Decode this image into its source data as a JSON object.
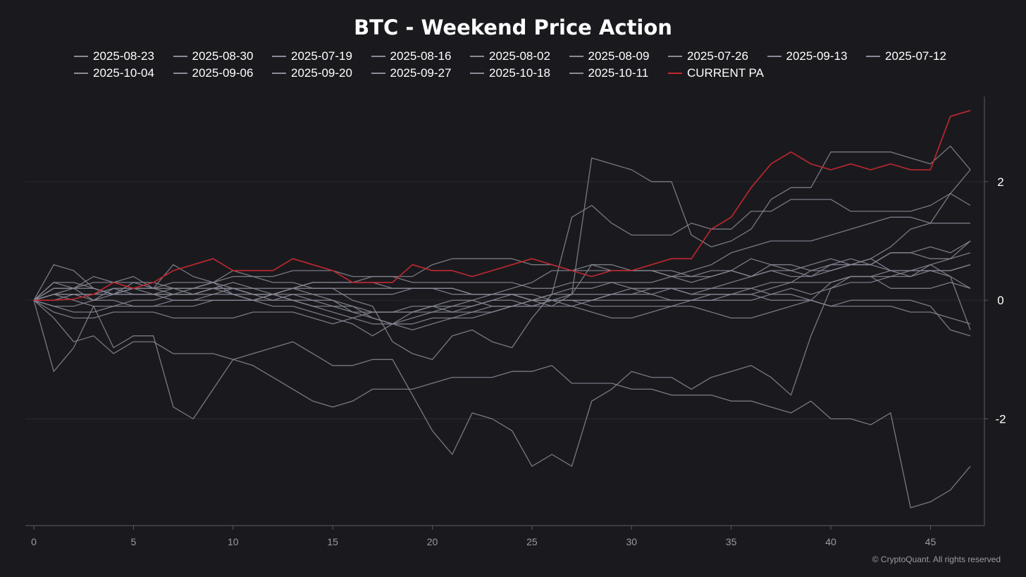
{
  "title": "BTC - Weekend Price Action",
  "copyright": "© CryptoQuant. All rights reserved",
  "colors": {
    "background": "#1a1a1e",
    "grid": "#2a2a30",
    "axis": "#5a5a66",
    "series_default": "#8a8a98",
    "current": "#c0282e"
  },
  "chart_data": {
    "type": "line",
    "title": "BTC - Weekend Price Action",
    "xlabel": "",
    "ylabel": "",
    "xlim": [
      0,
      47
    ],
    "ylim": [
      -3.8,
      3.4
    ],
    "x_ticks": [
      0,
      5,
      10,
      15,
      20,
      25,
      30,
      35,
      40,
      45
    ],
    "y_ticks": [
      2,
      0,
      -2
    ],
    "grid": "horizontal",
    "legend_position": "top",
    "series": [
      {
        "name": "2025-08-23",
        "color": "#8a8a98",
        "values": [
          0,
          0.6,
          0.5,
          0.2,
          0.1,
          0.3,
          0.2,
          0.1,
          0.1,
          0.2,
          0.1,
          0,
          -0.1,
          -0.1,
          -0.2,
          -0.3,
          -0.4,
          -0.6,
          -0.4,
          -0.5,
          -0.4,
          -0.3,
          -0.3,
          -0.2,
          -0.1,
          0,
          0,
          -0.1,
          -0.2,
          -0.3,
          -0.3,
          -0.2,
          -0.1,
          -0.1,
          -0.2,
          -0.3,
          -0.3,
          -0.2,
          -0.1,
          0,
          0.3,
          0.4,
          0.4,
          0.2,
          0.2,
          0.2,
          0.3,
          0.2
        ]
      },
      {
        "name": "2025-08-30",
        "color": "#8a8a98",
        "values": [
          0,
          -1.2,
          -0.8,
          -0.1,
          -0.8,
          -0.6,
          -0.6,
          -1.8,
          -2.0,
          -1.5,
          -1.0,
          -1.1,
          -1.3,
          -1.5,
          -1.7,
          -1.8,
          -1.7,
          -1.5,
          -1.5,
          -1.5,
          -1.4,
          -1.3,
          -1.3,
          -1.3,
          -1.2,
          -1.2,
          -1.1,
          -1.4,
          -1.4,
          -1.4,
          -1.5,
          -1.5,
          -1.6,
          -1.6,
          -1.6,
          -1.7,
          -1.7,
          -1.8,
          -1.9,
          -1.7,
          -2.0,
          -2.0,
          -2.1,
          -1.9,
          -3.5,
          -3.4,
          -3.2,
          -2.8
        ]
      },
      {
        "name": "2025-07-19",
        "color": "#8a8a98",
        "values": [
          0,
          0.2,
          0.2,
          0.4,
          0.3,
          0.4,
          0.2,
          0.3,
          0.3,
          0.3,
          0.5,
          0.4,
          0.3,
          0.3,
          0.2,
          0.2,
          0,
          -0.1,
          -0.7,
          -0.9,
          -1.0,
          -0.6,
          -0.5,
          -0.7,
          -0.8,
          -0.3,
          0.1,
          1.4,
          1.6,
          1.3,
          1.1,
          1.1,
          1.1,
          1.3,
          1.2,
          1.2,
          1.5,
          1.5,
          1.7,
          1.7,
          1.7,
          1.5,
          1.5,
          1.5,
          1.5,
          1.6,
          1.8,
          1.6
        ]
      },
      {
        "name": "2025-08-16",
        "color": "#8a8a98",
        "values": [
          0,
          0.3,
          0.3,
          0.2,
          0.1,
          0.2,
          0.2,
          0.6,
          0.4,
          0.3,
          0.2,
          0.1,
          0.1,
          0.2,
          0.1,
          0,
          -0.1,
          -0.3,
          -0.4,
          -0.2,
          -0.1,
          -0.2,
          -0.1,
          0,
          0.1,
          0,
          -0.1,
          0.1,
          0.6,
          0.5,
          0.5,
          0.5,
          0.5,
          0.4,
          0.4,
          0.5,
          0.7,
          0.6,
          0.6,
          0.5,
          0.6,
          0.7,
          0.6,
          0.5,
          0.5,
          0.6,
          0.7,
          0.8
        ]
      },
      {
        "name": "2025-08-02",
        "color": "#8a8a98",
        "values": [
          0,
          -0.2,
          -0.3,
          -0.3,
          -0.2,
          -0.2,
          -0.2,
          -0.3,
          -0.3,
          -0.3,
          -0.3,
          -0.2,
          -0.2,
          -0.2,
          -0.3,
          -0.4,
          -0.3,
          -0.2,
          -0.2,
          -0.1,
          -0.1,
          0,
          0,
          -0.1,
          -0.1,
          -0.1,
          0,
          0,
          0,
          0.1,
          0.1,
          0.2,
          0.2,
          0.2,
          0.2,
          0.2,
          0.2,
          0.3,
          0.3,
          0.3,
          0.3,
          0.4,
          0.4,
          0.4,
          0.5,
          0.5,
          0.5,
          0.6
        ]
      },
      {
        "name": "2025-08-09",
        "color": "#8a8a98",
        "values": [
          0,
          0.1,
          0.1,
          0,
          0.1,
          0.2,
          0.1,
          0.1,
          0.2,
          0.3,
          0.1,
          0,
          0.1,
          0.2,
          0.3,
          0.3,
          0.3,
          0.3,
          0.2,
          0.2,
          0.2,
          0.1,
          0.1,
          0.1,
          0.1,
          0,
          0.1,
          0.1,
          0.1,
          0.1,
          0.1,
          0.1,
          0,
          0,
          0,
          0,
          0,
          0.1,
          0.1,
          0,
          -0.1,
          -0.1,
          -0.1,
          -0.1,
          -0.2,
          -0.2,
          -0.3,
          -0.4
        ]
      },
      {
        "name": "2025-07-26",
        "color": "#8a8a98",
        "values": [
          0,
          -0.3,
          -0.7,
          -0.6,
          -0.9,
          -0.7,
          -0.7,
          -0.9,
          -0.9,
          -0.9,
          -1.0,
          -0.9,
          -0.8,
          -0.7,
          -0.9,
          -1.1,
          -1.1,
          -1.0,
          -1.0,
          -1.6,
          -2.2,
          -2.6,
          -1.9,
          -2.0,
          -2.2,
          -2.8,
          -2.6,
          -2.8,
          -1.7,
          -1.5,
          -1.2,
          -1.3,
          -1.3,
          -1.5,
          -1.3,
          -1.2,
          -1.1,
          -1.3,
          -1.6,
          -0.6,
          0.2,
          0.4,
          0.4,
          0.5,
          0.5,
          0.5,
          0.4,
          -0.5
        ]
      },
      {
        "name": "2025-09-13",
        "color": "#8a8a98",
        "values": [
          0,
          0.1,
          0.1,
          0.1,
          0.2,
          0.2,
          0.2,
          0.2,
          0.1,
          0.2,
          0.2,
          0.1,
          0.1,
          0.2,
          0.3,
          0.3,
          0.3,
          0.4,
          0.4,
          0.3,
          0.3,
          0.3,
          0.3,
          0.3,
          0.3,
          0.2,
          0.2,
          0.3,
          0.3,
          0.3,
          0.2,
          0.1,
          0.2,
          0.1,
          0.2,
          0.3,
          0.4,
          0.5,
          0.4,
          0.4,
          0.6,
          0.6,
          0.6,
          0.8,
          0.8,
          0.9,
          0.8,
          1.0
        ]
      },
      {
        "name": "2025-07-12",
        "color": "#8a8a98",
        "values": [
          0,
          0.1,
          0,
          -0.1,
          -0.1,
          0,
          0,
          0.1,
          0.1,
          0.2,
          0.3,
          0.2,
          0.1,
          0,
          -0.1,
          -0.2,
          -0.3,
          -0.4,
          -0.4,
          -0.3,
          -0.2,
          -0.1,
          0,
          0.1,
          0.2,
          0.3,
          0.5,
          0.5,
          0.6,
          0.6,
          0.5,
          0.5,
          0.4,
          0.3,
          0.4,
          0.5,
          0.4,
          0.5,
          0.5,
          0.6,
          0.7,
          0.6,
          0.7,
          0.9,
          1.2,
          1.3,
          1.8,
          2.2
        ]
      },
      {
        "name": "2025-10-04",
        "color": "#8a8a98",
        "values": [
          0,
          0.2,
          0.2,
          0.3,
          0.3,
          0.3,
          0.3,
          0.2,
          0.2,
          0.3,
          0.4,
          0.4,
          0.4,
          0.5,
          0.5,
          0.5,
          0.4,
          0.4,
          0.4,
          0.4,
          0.6,
          0.7,
          0.7,
          0.7,
          0.7,
          0.6,
          0.6,
          0.5,
          0.5,
          0.5,
          0.5,
          0.5,
          0.4,
          0.4,
          0.5,
          0.5,
          0.4,
          0.6,
          0.5,
          0.4,
          0.5,
          0.6,
          0.6,
          0.8,
          0.8,
          0.7,
          0.7,
          1.0
        ]
      },
      {
        "name": "2025-09-06",
        "color": "#8a8a98",
        "values": [
          0,
          -0.1,
          -0.1,
          0,
          0,
          -0.1,
          -0.1,
          -0.1,
          -0.1,
          0,
          0,
          0,
          0.1,
          0,
          -0.1,
          -0.1,
          -0.2,
          -0.2,
          -0.2,
          -0.2,
          -0.1,
          -0.1,
          -0.1,
          0,
          0,
          -0.1,
          -0.1,
          -0.1,
          0,
          0.1,
          0.2,
          0.2,
          0.2,
          0.1,
          0.1,
          0.1,
          0.1,
          0,
          0,
          0,
          -0.1,
          0,
          0,
          0,
          0,
          -0.1,
          -0.5,
          -0.6
        ]
      },
      {
        "name": "2025-09-20",
        "color": "#8a8a98",
        "values": [
          0,
          0.1,
          0.2,
          0.2,
          0.1,
          0.1,
          0.1,
          0.1,
          0.1,
          0.1,
          0.1,
          0.1,
          0.1,
          0.1,
          0.1,
          0.1,
          0.1,
          0.1,
          0.1,
          0.2,
          0.2,
          0.2,
          0.1,
          0.1,
          0.1,
          0.1,
          0,
          0,
          0,
          0,
          0,
          0,
          0,
          0,
          0.1,
          0.1,
          0.2,
          0.1,
          0.2,
          0.1,
          0.2,
          0.3,
          0.3,
          0.4,
          0.4,
          0.5,
          0.5,
          0.6
        ]
      },
      {
        "name": "2025-09-27",
        "color": "#8a8a98",
        "values": [
          0,
          -0.1,
          -0.2,
          -0.2,
          -0.1,
          -0.1,
          -0.1,
          0,
          0,
          0.1,
          0.2,
          0.2,
          0.2,
          0.2,
          0.2,
          0.2,
          0.2,
          0.2,
          0.2,
          0.2,
          0.2,
          0.2,
          0.1,
          0.1,
          0.1,
          0,
          0,
          0,
          -0.1,
          -0.1,
          -0.1,
          -0.1,
          -0.1,
          0,
          0,
          0.1,
          0.1,
          0.2,
          0.3,
          0.5,
          0.5,
          0.6,
          0.7,
          0.5,
          0.4,
          0.6,
          0.4,
          0.2
        ]
      },
      {
        "name": "2025-10-18",
        "color": "#8a8a98",
        "values": [
          0,
          0.3,
          0.2,
          0,
          0.2,
          0.1,
          0.1,
          0.2,
          0.2,
          0.2,
          0.2,
          0.1,
          0,
          0.1,
          0,
          -0.1,
          -0.1,
          -0.2,
          -0.2,
          -0.2,
          -0.2,
          -0.2,
          -0.2,
          -0.1,
          -0.1,
          0,
          0.1,
          0.2,
          0.2,
          0.3,
          0.3,
          0.3,
          0.4,
          0.5,
          0.6,
          0.8,
          0.9,
          1.0,
          1.0,
          1.0,
          1.1,
          1.2,
          1.3,
          1.4,
          1.4,
          1.3,
          1.3,
          1.3
        ]
      },
      {
        "name": "2025-10-11",
        "color": "#8a8a98",
        "values": [
          0,
          0,
          0.1,
          0.1,
          0.1,
          0.1,
          0.1,
          0,
          0,
          0,
          0,
          0,
          0,
          0,
          0,
          0,
          -0.2,
          -0.3,
          -0.4,
          -0.4,
          -0.3,
          -0.3,
          -0.2,
          -0.2,
          -0.1,
          -0.1,
          0,
          0.1,
          2.4,
          2.3,
          2.2,
          2.0,
          2.0,
          1.1,
          0.9,
          1.0,
          1.2,
          1.7,
          1.9,
          1.9,
          2.5,
          2.5,
          2.5,
          2.5,
          2.4,
          2.3,
          2.6,
          2.2
        ]
      },
      {
        "name": "CURRENT PA",
        "color": "#c0282e",
        "values": [
          0,
          0,
          0.02,
          0.1,
          0.3,
          0.2,
          0.3,
          0.5,
          0.6,
          0.7,
          0.5,
          0.5,
          0.5,
          0.7,
          0.6,
          0.5,
          0.3,
          0.3,
          0.3,
          0.6,
          0.5,
          0.5,
          0.4,
          0.5,
          0.6,
          0.7,
          0.6,
          0.5,
          0.4,
          0.5,
          0.5,
          0.6,
          0.7,
          0.7,
          1.2,
          1.4,
          1.9,
          2.3,
          2.5,
          2.3,
          2.2,
          2.3,
          2.2,
          2.3,
          2.2,
          2.2,
          3.1,
          3.2
        ]
      }
    ]
  }
}
